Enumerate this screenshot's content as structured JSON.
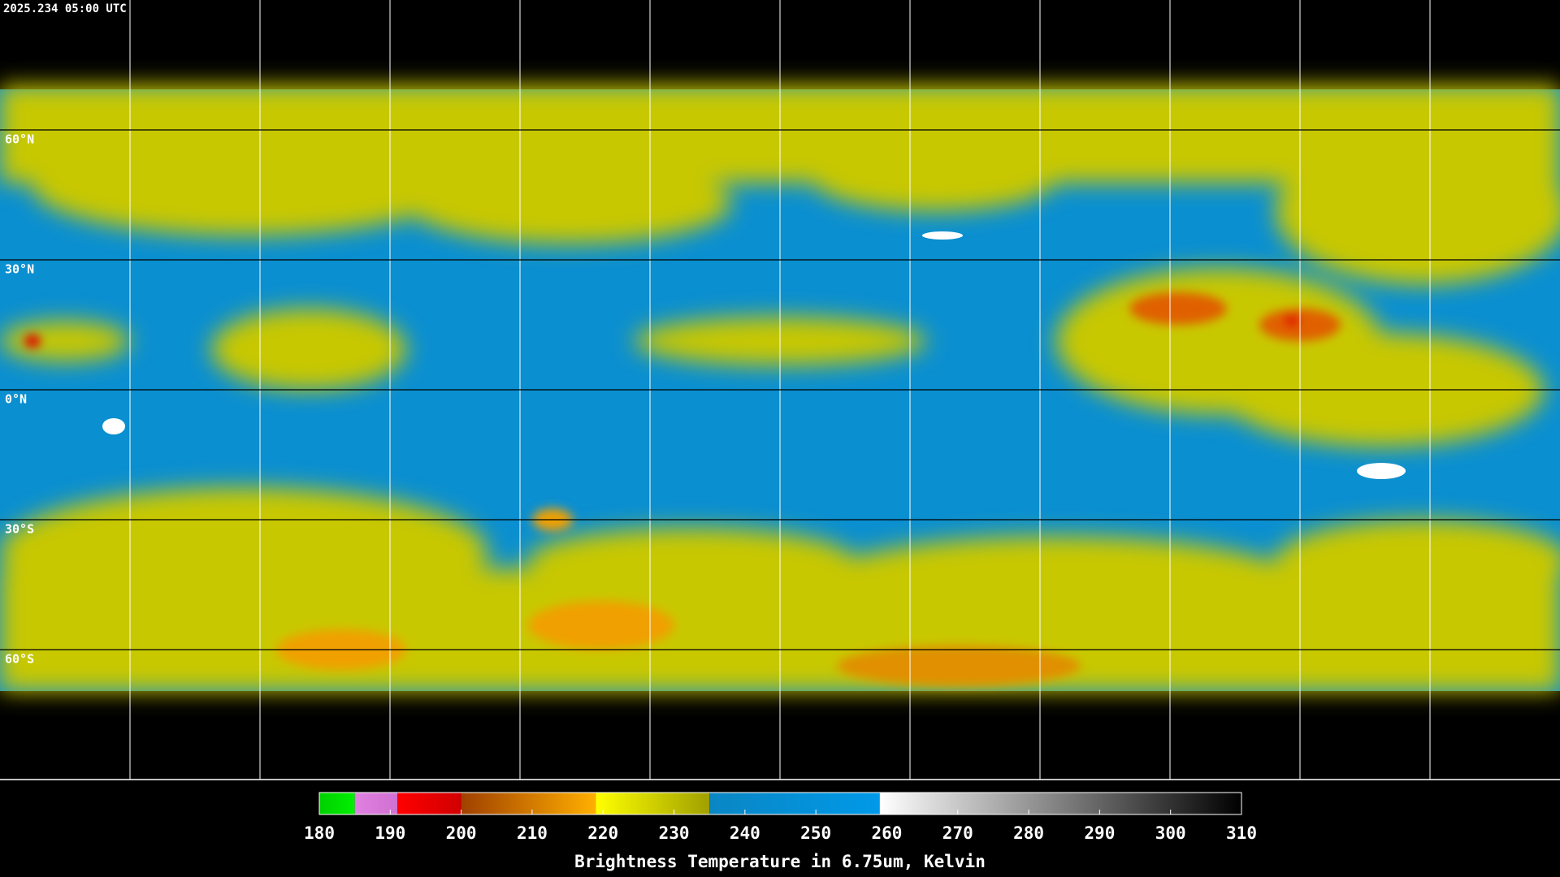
{
  "timestamp": "2025.234 05:00 UTC",
  "lat_labels": [
    {
      "value": 60,
      "label": "60°N"
    },
    {
      "value": 30,
      "label": "30°N"
    },
    {
      "value": 0,
      "label": "0°N"
    },
    {
      "value": -30,
      "label": "30°S"
    },
    {
      "value": -60,
      "label": "60°S"
    }
  ],
  "colorbar": {
    "label": "Brightness Temperature in 6.75um, Kelvin",
    "lim": [
      180,
      310
    ],
    "ticks": [
      180,
      190,
      200,
      210,
      220,
      230,
      240,
      250,
      260,
      270,
      280,
      290,
      300,
      310
    ],
    "segments": [
      {
        "from": 180,
        "to": 185,
        "colors": [
          "#00d000",
          "#00f000"
        ]
      },
      {
        "from": 185,
        "to": 191,
        "colors": [
          "#e080e0",
          "#d070d0"
        ]
      },
      {
        "from": 191,
        "to": 200,
        "colors": [
          "#ff0000",
          "#d00000"
        ]
      },
      {
        "from": 200,
        "to": 219,
        "colors": [
          "#a04000",
          "#ffb000"
        ]
      },
      {
        "from": 219,
        "to": 235,
        "colors": [
          "#ffff00",
          "#a0a000"
        ]
      },
      {
        "from": 235,
        "to": 259,
        "colors": [
          "#0a86c4",
          "#0099e8"
        ]
      },
      {
        "from": 259,
        "to": 310,
        "colors": [
          "#ffffff",
          "#000000"
        ]
      }
    ]
  }
}
